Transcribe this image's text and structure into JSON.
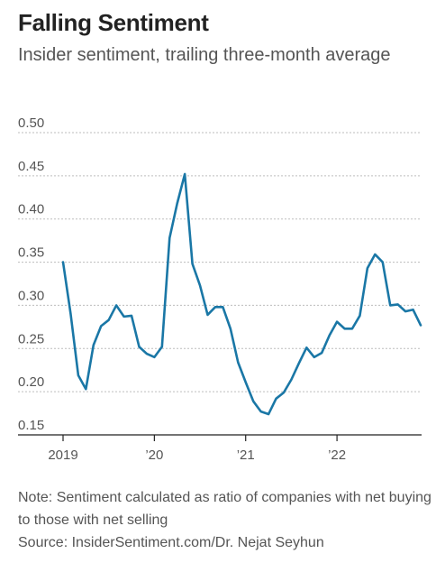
{
  "header": {
    "title": "Falling Sentiment",
    "subtitle": "Insider sentiment, trailing three-month average"
  },
  "footer": {
    "note": "Note: Sentiment calculated as ratio of companies with net buying to those with net selling",
    "source": "Source: InsiderSentiment.com/Dr. Nejat Seyhun"
  },
  "colors": {
    "line": "#1a77a6",
    "grid": "#bdbdbd",
    "axis": "#222222",
    "text": "#555555"
  },
  "chart_data": {
    "type": "line",
    "title": "Falling Sentiment",
    "subtitle": "Insider sentiment, trailing three-month average",
    "xlabel": "",
    "ylabel": "",
    "ylim": [
      0.15,
      0.5
    ],
    "yticks": [
      0.15,
      0.2,
      0.25,
      0.3,
      0.35,
      0.4,
      0.45,
      0.5
    ],
    "ytick_labels": [
      "0.15",
      "0.20",
      "0.25",
      "0.30",
      "0.35",
      "0.40",
      "0.45",
      "0.50"
    ],
    "xticks": [
      "2019-01",
      "2020-01",
      "2021-01",
      "2022-01"
    ],
    "xtick_labels": [
      "2019",
      "’20",
      "’21",
      "’22"
    ],
    "grid": true,
    "x": [
      "2019-01",
      "2019-02",
      "2019-03",
      "2019-04",
      "2019-05",
      "2019-06",
      "2019-07",
      "2019-08",
      "2019-09",
      "2019-10",
      "2019-11",
      "2019-12",
      "2020-01",
      "2020-02",
      "2020-03",
      "2020-04",
      "2020-05",
      "2020-06",
      "2020-07",
      "2020-08",
      "2020-09",
      "2020-10",
      "2020-11",
      "2020-12",
      "2021-01",
      "2021-02",
      "2021-03",
      "2021-04",
      "2021-05",
      "2021-06",
      "2021-07",
      "2021-08",
      "2021-09",
      "2021-10",
      "2021-11",
      "2021-12",
      "2022-01",
      "2022-02",
      "2022-03",
      "2022-04",
      "2022-05",
      "2022-06",
      "2022-07",
      "2022-08",
      "2022-09",
      "2022-10",
      "2022-11",
      "2022-12"
    ],
    "series": [
      {
        "values": [
          0.35,
          0.29,
          0.219,
          0.203,
          0.254,
          0.276,
          0.283,
          0.3,
          0.287,
          0.288,
          0.252,
          0.244,
          0.24,
          0.252,
          0.378,
          0.418,
          0.452,
          0.348,
          0.323,
          0.289,
          0.298,
          0.298,
          0.273,
          0.234,
          0.211,
          0.189,
          0.177,
          0.174,
          0.192,
          0.199,
          0.214,
          0.233,
          0.251,
          0.24,
          0.245,
          0.265,
          0.281,
          0.273,
          0.273,
          0.288,
          0.343,
          0.359,
          0.35,
          0.3,
          0.301,
          0.293,
          0.295,
          0.277
        ]
      }
    ]
  }
}
